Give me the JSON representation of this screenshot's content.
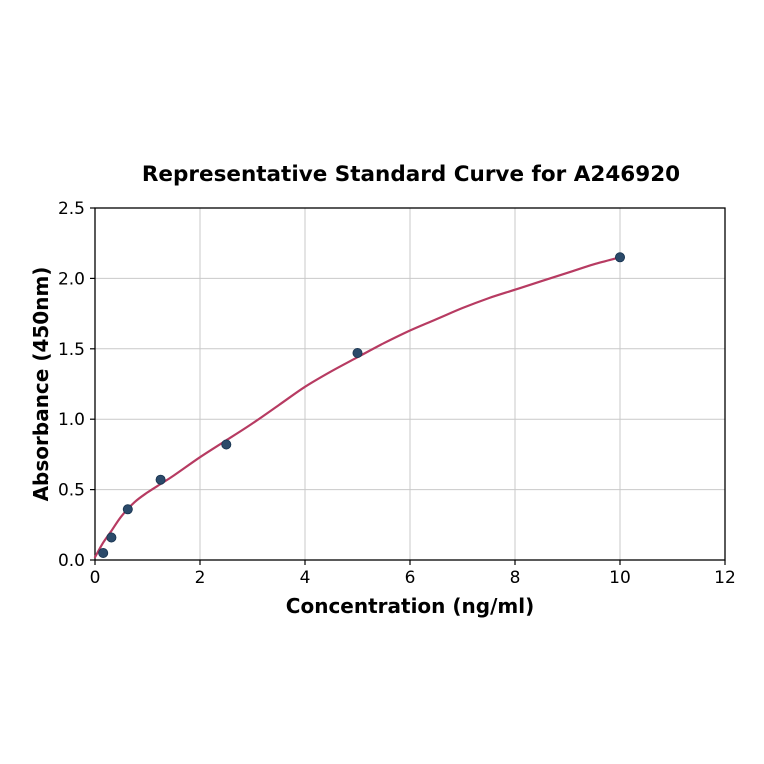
{
  "figure": {
    "background": "#ffffff"
  },
  "chart_data": {
    "type": "scatter",
    "title": "Representative Standard Curve for A246920",
    "xlabel": "Concentration (ng/ml)",
    "ylabel": "Absorbance (450nm)",
    "xlim": [
      0,
      12
    ],
    "ylim": [
      0,
      2.5
    ],
    "grid": true,
    "legend": "none",
    "x_ticks": {
      "values": [
        0,
        2,
        4,
        6,
        8,
        10,
        12
      ],
      "labels": [
        "0",
        "2",
        "4",
        "6",
        "8",
        "10",
        "12"
      ]
    },
    "y_ticks": {
      "values": [
        0,
        0.5,
        1.0,
        1.5,
        2.0,
        2.5
      ],
      "labels": [
        "0.0",
        "0.5",
        "1.0",
        "1.5",
        "2.0",
        "2.5"
      ]
    },
    "series": [
      {
        "name": "fitted-curve",
        "kind": "line",
        "color": "#b73b62",
        "points": [
          [
            0,
            0.02
          ],
          [
            0.15,
            0.12
          ],
          [
            0.3,
            0.2
          ],
          [
            0.5,
            0.31
          ],
          [
            0.75,
            0.41
          ],
          [
            1.0,
            0.48
          ],
          [
            1.25,
            0.54
          ],
          [
            1.5,
            0.6
          ],
          [
            2.0,
            0.73
          ],
          [
            2.5,
            0.85
          ],
          [
            3.0,
            0.97
          ],
          [
            3.5,
            1.1
          ],
          [
            4.0,
            1.23
          ],
          [
            4.5,
            1.34
          ],
          [
            5.0,
            1.44
          ],
          [
            5.5,
            1.54
          ],
          [
            6.0,
            1.63
          ],
          [
            6.5,
            1.71
          ],
          [
            7.0,
            1.79
          ],
          [
            7.5,
            1.86
          ],
          [
            8.0,
            1.92
          ],
          [
            8.5,
            1.98
          ],
          [
            9.0,
            2.04
          ],
          [
            9.5,
            2.1
          ],
          [
            10.0,
            2.15
          ]
        ]
      },
      {
        "name": "standard-points",
        "kind": "scatter",
        "color": "#2b4a6a",
        "edge_color": "#16324e",
        "points": [
          [
            0.156,
            0.05
          ],
          [
            0.313,
            0.16
          ],
          [
            0.625,
            0.36
          ],
          [
            1.25,
            0.57
          ],
          [
            2.5,
            0.82
          ],
          [
            5,
            1.47
          ],
          [
            10,
            2.15
          ]
        ]
      }
    ],
    "styles": {
      "grid_color": "#c9c9c9",
      "axis_color": "#000000",
      "text_color": "#000000",
      "curve_color": "#b73b62",
      "point_color": "#2b4a6a"
    }
  }
}
